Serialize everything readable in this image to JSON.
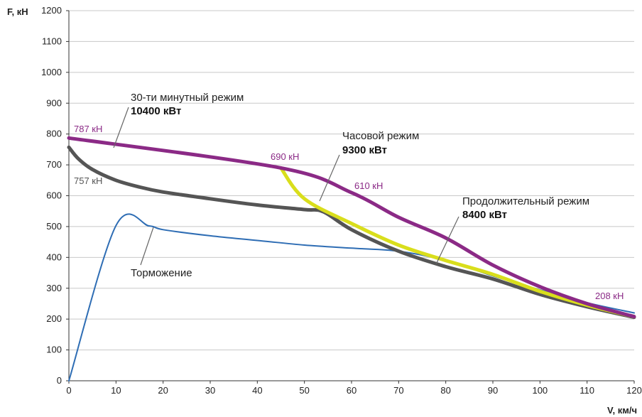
{
  "chart_data": {
    "type": "line",
    "xlabel": "V, км/ч",
    "ylabel": "F, кН",
    "xlim": [
      0,
      120
    ],
    "ylim": [
      0,
      1200
    ],
    "x_ticks": [
      0,
      10,
      20,
      30,
      40,
      50,
      60,
      70,
      80,
      90,
      100,
      110,
      120
    ],
    "y_ticks": [
      0,
      100,
      200,
      300,
      400,
      500,
      600,
      700,
      800,
      900,
      1000,
      1100,
      1200
    ],
    "grid": true,
    "series": [
      {
        "key": "thirty_min",
        "color": "#8B2A86",
        "points": [
          [
            0,
            787
          ],
          [
            45,
            690
          ],
          [
            60,
            610
          ],
          [
            70,
            530
          ],
          [
            80,
            463
          ],
          [
            90,
            375
          ],
          [
            100,
            305
          ],
          [
            110,
            250
          ],
          [
            120,
            208
          ]
        ]
      },
      {
        "key": "hourly",
        "color": "#D9DE1C",
        "points": [
          [
            45,
            690
          ],
          [
            50,
            590
          ],
          [
            60,
            510
          ],
          [
            70,
            440
          ],
          [
            80,
            390
          ],
          [
            90,
            345
          ],
          [
            100,
            290
          ],
          [
            110,
            245
          ],
          [
            120,
            208
          ]
        ]
      },
      {
        "key": "continuous",
        "color": "#555555",
        "points": [
          [
            0,
            757
          ],
          [
            2,
            720
          ],
          [
            5,
            685
          ],
          [
            10,
            650
          ],
          [
            15,
            628
          ],
          [
            20,
            612
          ],
          [
            30,
            590
          ],
          [
            40,
            570
          ],
          [
            50,
            555
          ],
          [
            54,
            548
          ],
          [
            60,
            490
          ],
          [
            70,
            420
          ],
          [
            80,
            370
          ],
          [
            90,
            330
          ],
          [
            100,
            280
          ],
          [
            110,
            240
          ],
          [
            120,
            206
          ]
        ]
      },
      {
        "key": "braking",
        "color": "#2E6DB4",
        "points": [
          [
            0,
            0
          ],
          [
            10,
            503
          ],
          [
            17,
            502
          ],
          [
            20,
            490
          ],
          [
            30,
            470
          ],
          [
            40,
            455
          ],
          [
            50,
            440
          ],
          [
            60,
            430
          ],
          [
            70,
            420
          ],
          [
            80,
            390
          ],
          [
            90,
            340
          ],
          [
            100,
            295
          ],
          [
            110,
            253
          ],
          [
            120,
            220
          ]
        ]
      }
    ],
    "annotations": {
      "thirty_min_title": "30-ти минутный режим",
      "thirty_min_power": "10400 кВт",
      "hourly_title": "Часовой режим",
      "hourly_power": "9300 кВт",
      "continuous_title": "Продолжительный режим",
      "continuous_power": "8400 кВт",
      "braking_title": "Торможение"
    },
    "point_labels": {
      "p787": "787 кН",
      "p757": "757 кН",
      "p690": "690 кН",
      "p610": "610 кН",
      "p208": "208 кН"
    }
  }
}
